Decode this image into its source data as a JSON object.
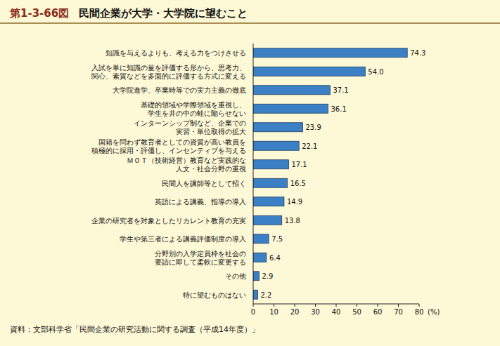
{
  "chart_data": {
    "type": "bar",
    "orientation": "horizontal",
    "figure_number": "第1-3-66図",
    "title": "民間企業が大学・大学院に望むこと",
    "source": "資料：文部科学省「民間企業の研究活動に関する調査（平成14年度）」",
    "x_label": "(%)",
    "categories": [
      "知識を与えるよりも、考える力をつけさせる",
      "入試を単に知識の量を評価する形から、思考力、\n関心、素質などを多面的に評価する方式に変える",
      "大学院進学、卒業時等での実力主義の徹底",
      "基礎的領域や学際領域を重視し、\n学生を井の中の蛙に陥らせない",
      "インターンシップ制など、企業での\n実習・単位取得の拡大",
      "国籍を問わず教育者としての資質が高い教員を\n積極的に採用・評価し、インセンティブを与える",
      "ＭＯＴ（技術経営）教育など実践的な\n人文・社会分野の重視",
      "民間人を講師等として招く",
      "英語による講義、指導の導入",
      "企業の研究者を対象としたリカレント教育の充実",
      "学生や第三者による講義評価制度の導入",
      "分野別の入学定員枠を社会の\n要請に即して柔軟に変更する",
      "その他",
      "特に望むものはない"
    ],
    "values": [
      74.3,
      54.0,
      37.1,
      36.1,
      23.9,
      22.1,
      17.1,
      16.5,
      14.9,
      13.8,
      7.5,
      6.4,
      2.9,
      2.2
    ],
    "value_labels": [
      "74.3",
      "54.0",
      "37.1",
      "36.1",
      "23.9",
      "22.1",
      "17.1",
      "16.5",
      "14.9",
      "13.8",
      "7.5",
      "6.4",
      "2.9",
      "2.2"
    ],
    "data_labels": true,
    "color": "#3b7fc4",
    "xlim": [
      0,
      80
    ],
    "xticks": [
      0,
      10,
      20,
      30,
      40,
      50,
      60,
      70,
      80
    ],
    "grid": false
  }
}
